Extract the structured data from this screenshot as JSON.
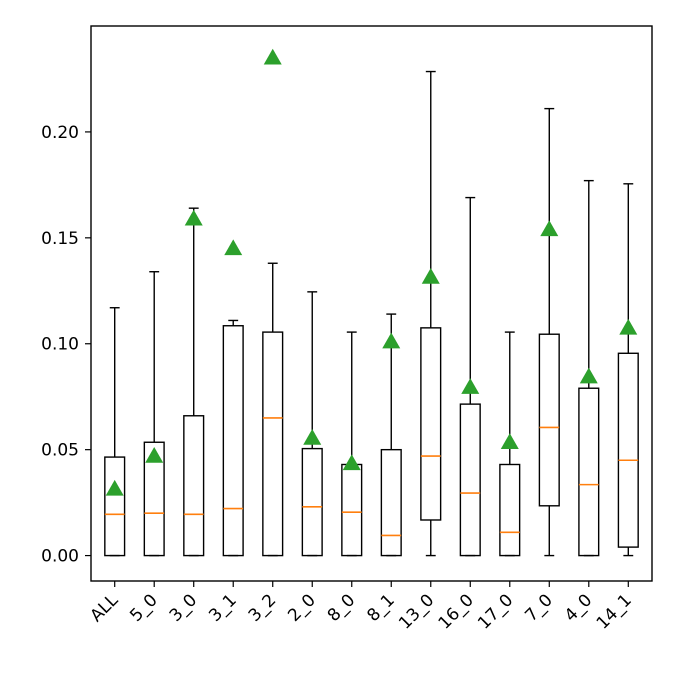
{
  "chart_data": {
    "type": "box",
    "title": "",
    "xlabel": "",
    "ylabel": "",
    "categories": [
      "ALL",
      "5_0",
      "3_0",
      "3_1",
      "3_2",
      "2_0",
      "8_0",
      "8_1",
      "13_0",
      "16_0",
      "17_0",
      "7_0",
      "4_0",
      "14_1"
    ],
    "ylim": [
      -0.012,
      0.25
    ],
    "y_ticks": [
      0.0,
      0.05,
      0.1,
      0.15,
      0.2
    ],
    "y_tick_labels": [
      "0.00",
      "0.05",
      "0.10",
      "0.15",
      "0.20"
    ],
    "boxes": [
      {
        "whisker_low": 0.0,
        "q1": 0.0,
        "median": 0.0195,
        "q3": 0.0465,
        "whisker_high": 0.117,
        "mean": 0.0315
      },
      {
        "whisker_low": 0.0,
        "q1": 0.0,
        "median": 0.02,
        "q3": 0.0535,
        "whisker_high": 0.134,
        "mean": 0.047
      },
      {
        "whisker_low": 0.0,
        "q1": 0.0,
        "median": 0.0195,
        "q3": 0.066,
        "whisker_high": 0.164,
        "mean": 0.159
      },
      {
        "whisker_low": 0.0,
        "q1": 0.0,
        "median": 0.0222,
        "q3": 0.1085,
        "whisker_high": 0.111,
        "mean": 0.145
      },
      {
        "whisker_low": 0.0,
        "q1": 0.0,
        "median": 0.065,
        "q3": 0.1055,
        "whisker_high": 0.138,
        "mean": 0.235
      },
      {
        "whisker_low": 0.0,
        "q1": 0.0,
        "median": 0.023,
        "q3": 0.0505,
        "whisker_high": 0.1245,
        "mean": 0.0555
      },
      {
        "whisker_low": 0.0,
        "q1": 0.0,
        "median": 0.0205,
        "q3": 0.043,
        "whisker_high": 0.1055,
        "mean": 0.0435
      },
      {
        "whisker_low": 0.0,
        "q1": 0.0,
        "median": 0.0095,
        "q3": 0.05,
        "whisker_high": 0.114,
        "mean": 0.101
      },
      {
        "whisker_low": 0.0,
        "q1": 0.0168,
        "median": 0.047,
        "q3": 0.1075,
        "whisker_high": 0.2285,
        "mean": 0.1315
      },
      {
        "whisker_low": 0.0,
        "q1": 0.0,
        "median": 0.0295,
        "q3": 0.0715,
        "whisker_high": 0.169,
        "mean": 0.0795
      },
      {
        "whisker_low": 0.0,
        "q1": 0.0,
        "median": 0.011,
        "q3": 0.043,
        "whisker_high": 0.1055,
        "mean": 0.0535
      },
      {
        "whisker_low": 0.0,
        "q1": 0.0235,
        "median": 0.0605,
        "q3": 0.1045,
        "whisker_high": 0.211,
        "mean": 0.154
      },
      {
        "whisker_low": 0.0,
        "q1": 0.0,
        "median": 0.0335,
        "q3": 0.079,
        "whisker_high": 0.177,
        "mean": 0.0845
      },
      {
        "whisker_low": 0.0,
        "q1": 0.004,
        "median": 0.045,
        "q3": 0.0955,
        "whisker_high": 0.1755,
        "mean": 0.1075
      }
    ],
    "grid": false,
    "legend": "none",
    "colors": {
      "box": "#000000",
      "median": "#ff7f0e",
      "mean_marker": "#2ca02c"
    },
    "mean_marker_shape": "triangle"
  }
}
